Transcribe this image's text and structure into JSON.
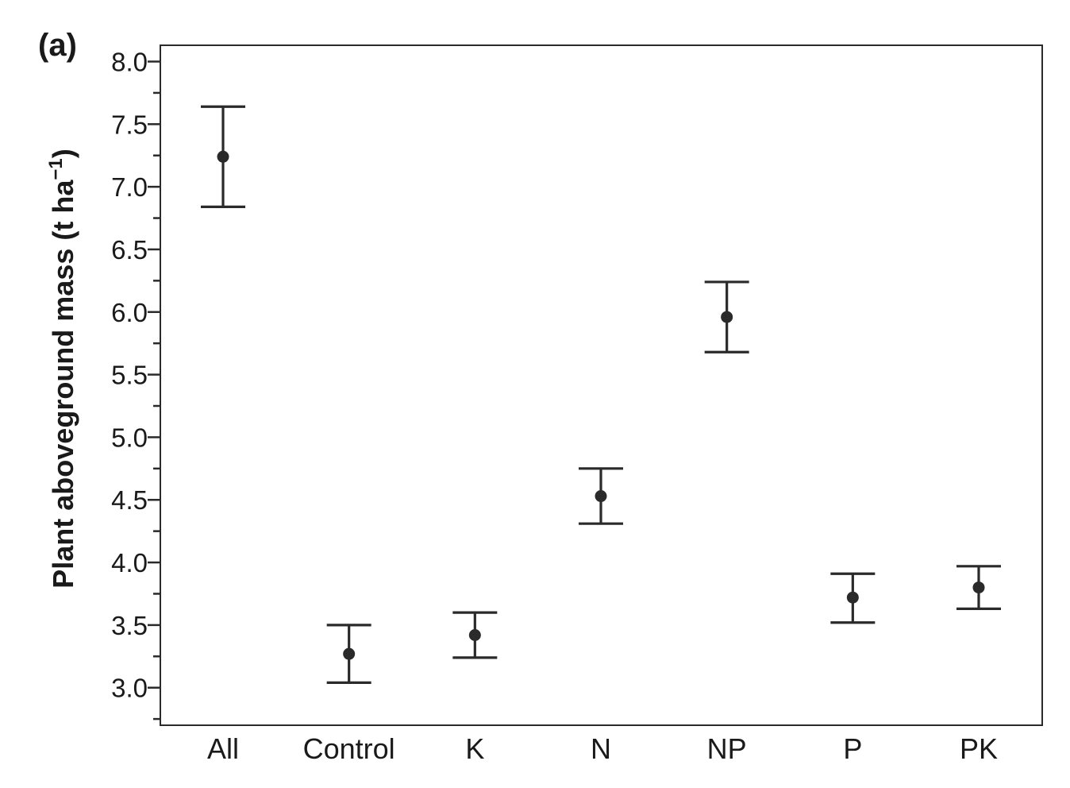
{
  "panel_label": "(a)",
  "chart_data": {
    "type": "scatter",
    "ylabel_main": "Plant aboveground mass (t ha",
    "ylabel_sup": "−1",
    "ylabel_end": ")",
    "xlabel": "",
    "ylim": [
      2.7,
      8.13
    ],
    "yticks": [
      "3.0",
      "3.5",
      "4.0",
      "4.5",
      "5.0",
      "5.5",
      "6.0",
      "6.5",
      "7.0",
      "7.5",
      "8.0"
    ],
    "categories": [
      "All",
      "Control",
      "K",
      "N",
      "NP",
      "P",
      "PK"
    ],
    "series": [
      {
        "mean": [
          7.24,
          3.27,
          3.42,
          4.53,
          5.96,
          3.72,
          3.8
        ],
        "lower": [
          6.84,
          3.04,
          3.24,
          4.31,
          5.68,
          3.52,
          3.63
        ],
        "upper": [
          7.64,
          3.5,
          3.6,
          4.75,
          6.24,
          3.91,
          3.97
        ]
      }
    ],
    "grid": false,
    "legend": "none"
  }
}
